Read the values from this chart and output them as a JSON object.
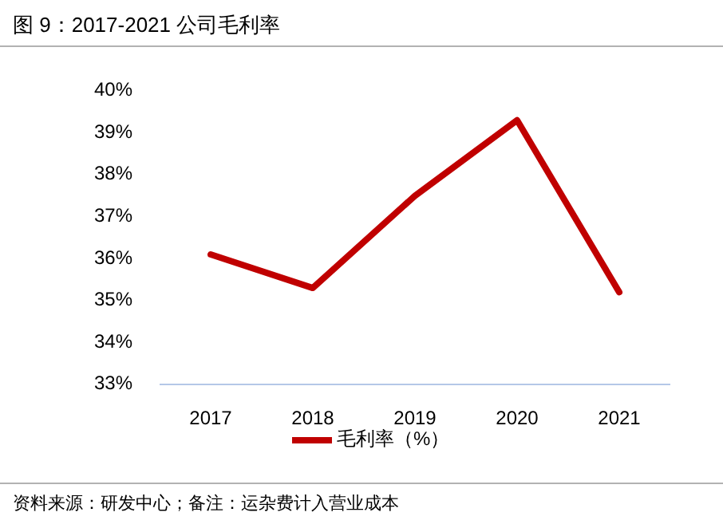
{
  "chart_data": {
    "type": "line",
    "title": "图 9：2017-2021 公司毛利率",
    "categories": [
      "2017",
      "2018",
      "2019",
      "2020",
      "2021"
    ],
    "series": [
      {
        "name": "毛利率（%）",
        "color": "#c00000",
        "values": [
          36.1,
          35.3,
          37.5,
          39.3,
          35.2
        ]
      }
    ],
    "ylim": [
      33,
      40
    ],
    "yticks": [
      {
        "value": 33,
        "label": "33%"
      },
      {
        "value": 34,
        "label": "34%"
      },
      {
        "value": 35,
        "label": "35%"
      },
      {
        "value": 36,
        "label": "36%"
      },
      {
        "value": 37,
        "label": "37%"
      },
      {
        "value": 38,
        "label": "38%"
      },
      {
        "value": 39,
        "label": "39%"
      },
      {
        "value": 40,
        "label": "40%"
      }
    ],
    "grid": false,
    "legend": "bottom",
    "marker": "none",
    "line_style": "solid",
    "annotations": [
      "资料来源：研发中心；备注：运杂费计入营业成本"
    ]
  }
}
